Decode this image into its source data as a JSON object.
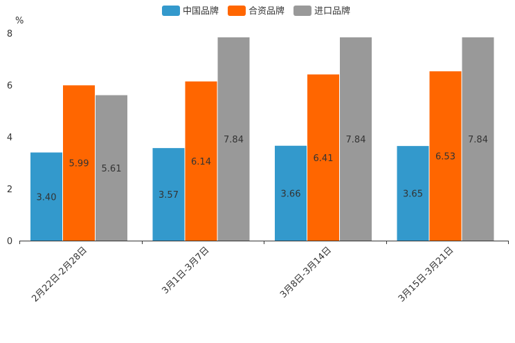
{
  "chart_data": {
    "type": "bar",
    "unit": "%",
    "categories": [
      "2月22日-2月28日",
      "3月1日-3月7日",
      "3月8日-3月14日",
      "3月15日-3月21日"
    ],
    "series": [
      {
        "name": "中国品牌",
        "color": "#3399cc",
        "values": [
          3.4,
          3.57,
          3.66,
          3.65
        ],
        "labels": [
          "3.40",
          "3.57",
          "3.66",
          "3.65"
        ]
      },
      {
        "name": "合资品牌",
        "color": "#ff6600",
        "values": [
          5.99,
          6.14,
          6.41,
          6.53
        ],
        "labels": [
          "5.99",
          "6.14",
          "6.41",
          "6.53"
        ]
      },
      {
        "name": "进口品牌",
        "color": "#999999",
        "values": [
          5.61,
          7.84,
          7.84,
          7.84
        ],
        "labels": [
          "5.61",
          "7.84",
          "7.84",
          "7.84"
        ]
      }
    ],
    "yticks": [
      "0",
      "2",
      "4",
      "6",
      "8"
    ],
    "ylim": [
      0,
      8
    ],
    "legend_position": "top-center"
  }
}
